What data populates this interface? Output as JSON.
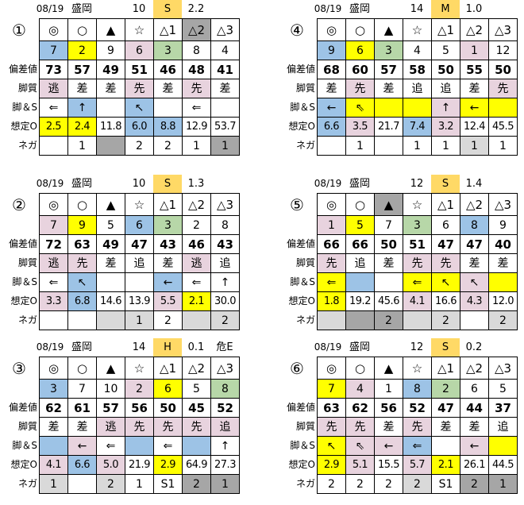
{
  "row_labels": [
    "偏差値",
    "脚質",
    "脚＆S",
    "想定O",
    "ネガ"
  ],
  "marks": [
    "◎",
    "○",
    "▲",
    "☆",
    "△1",
    "△2",
    "△3"
  ],
  "colors": {
    "w": "#ffffff",
    "b": "#9dc3e6",
    "y": "#ffff00",
    "p": "#e8d3de",
    "g": "#b7d7a8",
    "d": "#a6a6a6",
    "l": "#d9d9d9",
    "o": "#ffd966"
  },
  "panels": [
    {
      "id": "①",
      "date": "08/19",
      "venue": "盛岡",
      "race": "10",
      "grade": "S",
      "value": "2.2",
      "extra": "",
      "mark_colors": [
        "w",
        "w",
        "w",
        "w",
        "w",
        "d",
        "w"
      ],
      "horses": [
        [
          "7",
          "b"
        ],
        [
          "2",
          "y"
        ],
        [
          "9",
          "w"
        ],
        [
          "6",
          "p"
        ],
        [
          "3",
          "g"
        ],
        [
          "8",
          "w"
        ],
        [
          "4",
          "w"
        ]
      ],
      "hensa": [
        [
          "73",
          "w"
        ],
        [
          "57",
          "w"
        ],
        [
          "49",
          "w"
        ],
        [
          "51",
          "w"
        ],
        [
          "46",
          "w"
        ],
        [
          "48",
          "w"
        ],
        [
          "41",
          "w"
        ]
      ],
      "style": [
        [
          "逃",
          "p"
        ],
        [
          "差",
          "w"
        ],
        [
          "差",
          "w"
        ],
        [
          "先",
          "p"
        ],
        [
          "差",
          "w"
        ],
        [
          "先",
          "p"
        ],
        [
          "差",
          "w"
        ]
      ],
      "kyaku_s": [
        [
          "⇐",
          "w"
        ],
        [
          "↑",
          "b"
        ],
        [
          "",
          "w"
        ],
        [
          "↖",
          "b"
        ],
        [
          "",
          "w"
        ],
        [
          "⇐",
          "w"
        ],
        [
          "",
          "w"
        ]
      ],
      "odds": [
        [
          "2.5",
          "y"
        ],
        [
          "2.4",
          "y"
        ],
        [
          "11.8",
          "w"
        ],
        [
          "6.0",
          "b"
        ],
        [
          "8.8",
          "b"
        ],
        [
          "12.9",
          "w"
        ],
        [
          "53.7",
          "w"
        ]
      ],
      "nega": [
        [
          "",
          "w"
        ],
        [
          "1",
          "w"
        ],
        [
          "",
          "d"
        ],
        [
          "2",
          "w"
        ],
        [
          "2",
          "w"
        ],
        [
          "1",
          "w"
        ],
        [
          "1",
          "d"
        ]
      ]
    },
    {
      "id": "②",
      "date": "08/19",
      "venue": "盛岡",
      "race": "10",
      "grade": "S",
      "value": "1.3",
      "extra": "",
      "mark_colors": [
        "w",
        "w",
        "w",
        "w",
        "w",
        "w",
        "w"
      ],
      "horses": [
        [
          "7",
          "p"
        ],
        [
          "9",
          "y"
        ],
        [
          "5",
          "w"
        ],
        [
          "6",
          "b"
        ],
        [
          "3",
          "g"
        ],
        [
          "2",
          "w"
        ],
        [
          "8",
          "w"
        ]
      ],
      "hensa": [
        [
          "72",
          "w"
        ],
        [
          "63",
          "w"
        ],
        [
          "49",
          "w"
        ],
        [
          "47",
          "w"
        ],
        [
          "43",
          "w"
        ],
        [
          "46",
          "w"
        ],
        [
          "43",
          "w"
        ]
      ],
      "style": [
        [
          "逃",
          "p"
        ],
        [
          "先",
          "p"
        ],
        [
          "差",
          "w"
        ],
        [
          "追",
          "w"
        ],
        [
          "差",
          "w"
        ],
        [
          "逃",
          "p"
        ],
        [
          "追",
          "w"
        ]
      ],
      "kyaku_s": [
        [
          "⇐",
          "w"
        ],
        [
          "↖",
          "b"
        ],
        [
          "",
          "w"
        ],
        [
          "",
          "w"
        ],
        [
          "←",
          "b"
        ],
        [
          "⇐",
          "w"
        ],
        [
          "↑",
          "w"
        ]
      ],
      "odds": [
        [
          "3.3",
          "p"
        ],
        [
          "6.8",
          "b"
        ],
        [
          "14.6",
          "w"
        ],
        [
          "13.9",
          "w"
        ],
        [
          "5.5",
          "p"
        ],
        [
          "2.1",
          "y"
        ],
        [
          "30.0",
          "w"
        ]
      ],
      "nega": [
        [
          "",
          "w"
        ],
        [
          "",
          "w"
        ],
        [
          "",
          "l"
        ],
        [
          "1",
          "l"
        ],
        [
          "2",
          "w"
        ],
        [
          "",
          "l"
        ],
        [
          "2",
          "l"
        ]
      ]
    },
    {
      "id": "③",
      "date": "08/19",
      "venue": "盛岡",
      "race": "14",
      "grade": "H",
      "value": "0.1",
      "extra": "危E",
      "mark_colors": [
        "w",
        "w",
        "w",
        "w",
        "w",
        "w",
        "w"
      ],
      "horses": [
        [
          "3",
          "b"
        ],
        [
          "7",
          "w"
        ],
        [
          "10",
          "w"
        ],
        [
          "2",
          "p"
        ],
        [
          "6",
          "y"
        ],
        [
          "5",
          "w"
        ],
        [
          "8",
          "g"
        ]
      ],
      "hensa": [
        [
          "62",
          "w"
        ],
        [
          "61",
          "w"
        ],
        [
          "57",
          "w"
        ],
        [
          "56",
          "w"
        ],
        [
          "50",
          "w"
        ],
        [
          "45",
          "w"
        ],
        [
          "52",
          "w"
        ]
      ],
      "style": [
        [
          "差",
          "w"
        ],
        [
          "差",
          "w"
        ],
        [
          "逃",
          "p"
        ],
        [
          "先",
          "p"
        ],
        [
          "先",
          "p"
        ],
        [
          "先",
          "p"
        ],
        [
          "追",
          "p"
        ]
      ],
      "kyaku_s": [
        [
          "",
          "b"
        ],
        [
          "←",
          "p"
        ],
        [
          "⇐",
          "w"
        ],
        [
          "",
          "b"
        ],
        [
          "⇐",
          "w"
        ],
        [
          "",
          "b"
        ],
        [
          "↑",
          "w"
        ]
      ],
      "odds": [
        [
          "4.1",
          "p"
        ],
        [
          "6.6",
          "b"
        ],
        [
          "5.0",
          "p"
        ],
        [
          "21.9",
          "w"
        ],
        [
          "2.9",
          "y"
        ],
        [
          "64.9",
          "w"
        ],
        [
          "27.3",
          "w"
        ]
      ],
      "nega": [
        [
          "1",
          "l"
        ],
        [
          "",
          "w"
        ],
        [
          "2",
          "l"
        ],
        [
          "1",
          "w"
        ],
        [
          "S1",
          "w"
        ],
        [
          "2",
          "d"
        ],
        [
          "1",
          "d"
        ]
      ]
    },
    {
      "id": "④",
      "date": "08/19",
      "venue": "盛岡",
      "race": "14",
      "grade": "M",
      "value": "1.0",
      "extra": "",
      "mark_colors": [
        "w",
        "w",
        "w",
        "w",
        "w",
        "w",
        "w"
      ],
      "horses": [
        [
          "9",
          "b"
        ],
        [
          "6",
          "y"
        ],
        [
          "3",
          "g"
        ],
        [
          "4",
          "w"
        ],
        [
          "5",
          "w"
        ],
        [
          "1",
          "p"
        ],
        [
          "12",
          "w"
        ]
      ],
      "hensa": [
        [
          "68",
          "w"
        ],
        [
          "60",
          "w"
        ],
        [
          "57",
          "w"
        ],
        [
          "58",
          "w"
        ],
        [
          "50",
          "w"
        ],
        [
          "55",
          "w"
        ],
        [
          "50",
          "w"
        ]
      ],
      "style": [
        [
          "差",
          "w"
        ],
        [
          "先",
          "p"
        ],
        [
          "差",
          "w"
        ],
        [
          "追",
          "w"
        ],
        [
          "追",
          "w"
        ],
        [
          "差",
          "w"
        ],
        [
          "先",
          "p"
        ]
      ],
      "kyaku_s": [
        [
          "←",
          "b"
        ],
        [
          "⇖",
          "y"
        ],
        [
          "",
          "y"
        ],
        [
          "",
          "y"
        ],
        [
          "↑",
          "p"
        ],
        [
          "←",
          "y"
        ],
        [
          "",
          "y"
        ]
      ],
      "odds": [
        [
          "6.6",
          "b"
        ],
        [
          "3.5",
          "p"
        ],
        [
          "21.7",
          "w"
        ],
        [
          "7.4",
          "b"
        ],
        [
          "3.2",
          "p"
        ],
        [
          "12.4",
          "w"
        ],
        [
          "45.5",
          "w"
        ]
      ],
      "nega": [
        [
          "",
          "w"
        ],
        [
          "1",
          "w"
        ],
        [
          "",
          "w"
        ],
        [
          "1",
          "w"
        ],
        [
          "1",
          "w"
        ],
        [
          "1",
          "l"
        ],
        [
          "1",
          "w"
        ]
      ]
    },
    {
      "id": "⑤",
      "date": "08/19",
      "venue": "盛岡",
      "race": "12",
      "grade": "S",
      "value": "1.4",
      "extra": "",
      "mark_colors": [
        "w",
        "w",
        "d",
        "w",
        "w",
        "w",
        "w"
      ],
      "horses": [
        [
          "1",
          "p"
        ],
        [
          "5",
          "y"
        ],
        [
          "7",
          "w"
        ],
        [
          "3",
          "g"
        ],
        [
          "6",
          "w"
        ],
        [
          "8",
          "b"
        ],
        [
          "9",
          "w"
        ]
      ],
      "hensa": [
        [
          "66",
          "w"
        ],
        [
          "66",
          "w"
        ],
        [
          "50",
          "w"
        ],
        [
          "51",
          "w"
        ],
        [
          "47",
          "w"
        ],
        [
          "47",
          "w"
        ],
        [
          "40",
          "w"
        ]
      ],
      "style": [
        [
          "先",
          "p"
        ],
        [
          "追",
          "w"
        ],
        [
          "差",
          "w"
        ],
        [
          "先",
          "p"
        ],
        [
          "先",
          "p"
        ],
        [
          "差",
          "w"
        ],
        [
          "差",
          "w"
        ]
      ],
      "kyaku_s": [
        [
          "⇐",
          "y"
        ],
        [
          "",
          "b"
        ],
        [
          "",
          "w"
        ],
        [
          "⇐",
          "y"
        ],
        [
          "↖",
          "y"
        ],
        [
          "↖",
          "p"
        ],
        [
          "",
          "y"
        ]
      ],
      "odds": [
        [
          "1.8",
          "y"
        ],
        [
          "19.2",
          "w"
        ],
        [
          "45.6",
          "w"
        ],
        [
          "4.1",
          "p"
        ],
        [
          "16.6",
          "w"
        ],
        [
          "4.3",
          "p"
        ],
        [
          "12.0",
          "w"
        ]
      ],
      "nega": [
        [
          "",
          "l"
        ],
        [
          "",
          "d"
        ],
        [
          "2",
          "d"
        ],
        [
          "",
          "l"
        ],
        [
          "2",
          "l"
        ],
        [
          "",
          "w"
        ],
        [
          "2",
          "l"
        ]
      ]
    },
    {
      "id": "⑥",
      "date": "08/19",
      "venue": "盛岡",
      "race": "12",
      "grade": "S",
      "value": "0.2",
      "extra": "",
      "mark_colors": [
        "w",
        "w",
        "w",
        "w",
        "w",
        "w",
        "w"
      ],
      "horses": [
        [
          "7",
          "y"
        ],
        [
          "4",
          "p"
        ],
        [
          "1",
          "w"
        ],
        [
          "8",
          "b"
        ],
        [
          "2",
          "g"
        ],
        [
          "6",
          "w"
        ],
        [
          "5",
          "w"
        ]
      ],
      "hensa": [
        [
          "63",
          "w"
        ],
        [
          "62",
          "w"
        ],
        [
          "56",
          "w"
        ],
        [
          "52",
          "w"
        ],
        [
          "47",
          "w"
        ],
        [
          "44",
          "w"
        ],
        [
          "37",
          "w"
        ]
      ],
      "style": [
        [
          "先",
          "p"
        ],
        [
          "先",
          "p"
        ],
        [
          "差",
          "w"
        ],
        [
          "先",
          "p"
        ],
        [
          "差",
          "w"
        ],
        [
          "差",
          "w"
        ],
        [
          "追",
          "w"
        ]
      ],
      "kyaku_s": [
        [
          "↖",
          "y"
        ],
        [
          "⇖",
          "p"
        ],
        [
          "←",
          "p"
        ],
        [
          "⇐",
          "b"
        ],
        [
          "",
          "w"
        ],
        [
          "←",
          "p"
        ],
        [
          "",
          "y"
        ]
      ],
      "odds": [
        [
          "2.9",
          "y"
        ],
        [
          "5.1",
          "p"
        ],
        [
          "15.5",
          "w"
        ],
        [
          "5.7",
          "p"
        ],
        [
          "2.1",
          "y"
        ],
        [
          "26.1",
          "w"
        ],
        [
          "44.5",
          "w"
        ]
      ],
      "nega": [
        [
          "2",
          "w"
        ],
        [
          "2",
          "w"
        ],
        [
          "2",
          "w"
        ],
        [
          "2",
          "l"
        ],
        [
          "S1",
          "w"
        ],
        [
          "2",
          "d"
        ],
        [
          "1",
          "d"
        ]
      ]
    }
  ]
}
